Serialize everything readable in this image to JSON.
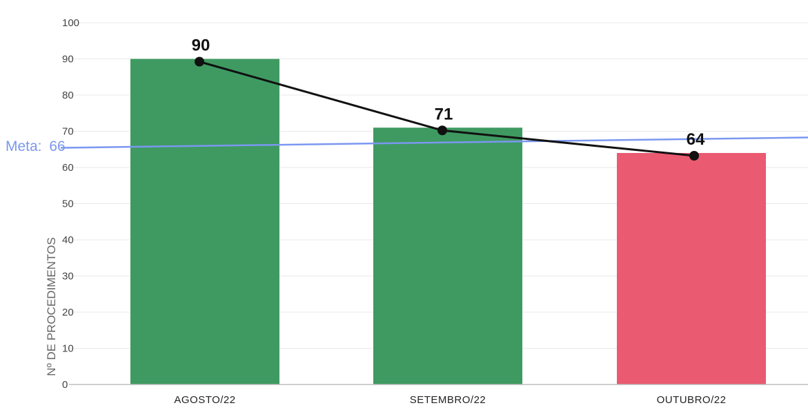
{
  "chart_data": {
    "type": "bar",
    "title": "",
    "categories": [
      "AGOSTO/22",
      "SETEMBRO/22",
      "OUTUBRO/22"
    ],
    "values": [
      90,
      71,
      64
    ],
    "data_labels": [
      "90",
      "71",
      "64"
    ],
    "bar_colors": [
      "#3f9a62",
      "#3f9a62",
      "#ea5a70"
    ],
    "line_overlay": {
      "values": [
        90,
        71,
        64
      ],
      "color": "#111111"
    },
    "ylabel": "Nº DE PROCEDIMENTOS",
    "xlabel": "",
    "ylim": [
      0,
      100
    ],
    "yticks": [
      "0",
      "10",
      "20",
      "30",
      "40",
      "50",
      "60",
      "70",
      "80",
      "90",
      "100"
    ],
    "grid": true,
    "reference_line": {
      "label": "Meta:",
      "value_label": "66",
      "value": 66,
      "color": "#7b97f0"
    }
  }
}
